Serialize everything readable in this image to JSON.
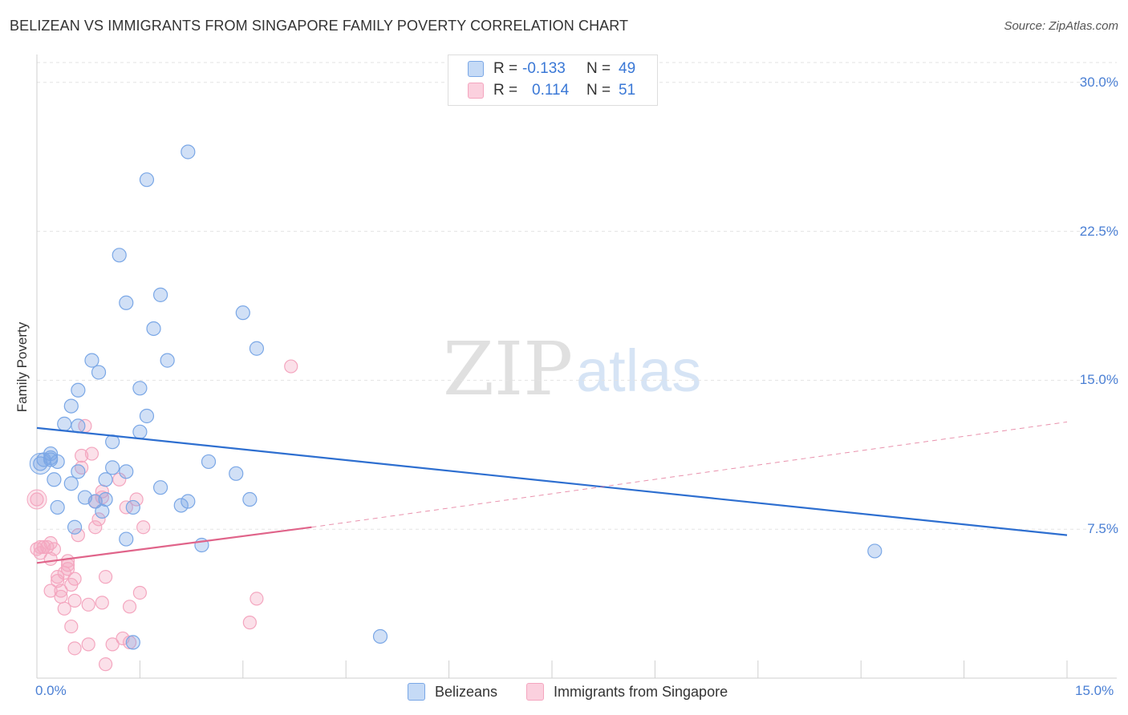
{
  "title": "BELIZEAN VS IMMIGRANTS FROM SINGAPORE FAMILY POVERTY CORRELATION CHART",
  "source": "Source: ZipAtlas.com",
  "watermark": {
    "zip": "ZIP",
    "atlas": "atlas"
  },
  "legend_top": {
    "rows": [
      {
        "r_label": "R =",
        "r_value": "-0.133",
        "n_label": "N =",
        "n_value": "49",
        "color": "#a8c8f0"
      },
      {
        "r_label": "R =",
        "r_value": "0.114",
        "n_label": "N =",
        "n_value": "51",
        "color": "#f6b8cb"
      }
    ]
  },
  "bottom_legend": {
    "series1": "Belizeans",
    "series2": "Immigrants from Singapore"
  },
  "chart_data": {
    "type": "scatter",
    "title": "BELIZEAN VS IMMIGRANTS FROM SINGAPORE FAMILY POVERTY CORRELATION CHART",
    "xlabel": "",
    "ylabel": "Family Poverty",
    "xlim": [
      0,
      15
    ],
    "ylim": [
      0,
      31
    ],
    "x_tick_labels": [
      "0.0%",
      "15.0%"
    ],
    "y_ticks": [
      7.5,
      15.0,
      22.5,
      30.0
    ],
    "y_tick_labels": [
      "7.5%",
      "15.0%",
      "22.5%",
      "30.0%"
    ],
    "grid": "horizontal dashed",
    "series": [
      {
        "name": "Belizeans",
        "color": "#7aa7e6",
        "line_color": "#2e6fd0",
        "r": -0.133,
        "n": 49,
        "trend": {
          "x": [
            0,
            15
          ],
          "y": [
            12.6,
            7.2
          ]
        },
        "points": [
          [
            2.2,
            26.5
          ],
          [
            1.6,
            25.1
          ],
          [
            1.2,
            21.3
          ],
          [
            1.8,
            19.3
          ],
          [
            1.3,
            18.9
          ],
          [
            3.0,
            18.4
          ],
          [
            1.7,
            17.6
          ],
          [
            3.2,
            16.6
          ],
          [
            0.8,
            16.0
          ],
          [
            1.9,
            16.0
          ],
          [
            0.9,
            15.4
          ],
          [
            1.5,
            14.6
          ],
          [
            0.6,
            14.5
          ],
          [
            0.5,
            13.7
          ],
          [
            1.6,
            13.2
          ],
          [
            0.4,
            12.8
          ],
          [
            0.6,
            12.7
          ],
          [
            1.5,
            12.4
          ],
          [
            1.1,
            11.9
          ],
          [
            0.1,
            11.0
          ],
          [
            0.2,
            11.3
          ],
          [
            0.2,
            11.0
          ],
          [
            0.3,
            10.9
          ],
          [
            0.05,
            10.8
          ],
          [
            2.5,
            10.9
          ],
          [
            0.6,
            10.4
          ],
          [
            1.3,
            10.4
          ],
          [
            2.9,
            10.3
          ],
          [
            1.0,
            10.0
          ],
          [
            0.25,
            10.0
          ],
          [
            0.5,
            9.8
          ],
          [
            1.8,
            9.6
          ],
          [
            1.1,
            10.6
          ],
          [
            0.7,
            9.1
          ],
          [
            1.0,
            9.0
          ],
          [
            0.85,
            8.9
          ],
          [
            3.1,
            9.0
          ],
          [
            2.2,
            8.9
          ],
          [
            0.3,
            8.6
          ],
          [
            1.4,
            8.6
          ],
          [
            2.1,
            8.7
          ],
          [
            0.55,
            7.6
          ],
          [
            0.95,
            8.4
          ],
          [
            1.3,
            7.0
          ],
          [
            2.4,
            6.7
          ],
          [
            12.2,
            6.4
          ],
          [
            5.0,
            2.1
          ],
          [
            1.4,
            1.8
          ],
          [
            0.2,
            11.1
          ]
        ]
      },
      {
        "name": "Immigrants from Singapore",
        "color": "#f4a6bf",
        "line_color": "#e0648a",
        "r": 0.114,
        "n": 51,
        "trend": {
          "x": [
            0,
            4.0
          ],
          "y": [
            5.8,
            7.6
          ]
        },
        "trend_dashed": {
          "x": [
            4.0,
            15
          ],
          "y": [
            7.6,
            12.9
          ]
        },
        "points": [
          [
            3.7,
            15.7
          ],
          [
            0.7,
            12.7
          ],
          [
            0.8,
            11.3
          ],
          [
            0.65,
            11.2
          ],
          [
            0.65,
            10.6
          ],
          [
            1.2,
            10.0
          ],
          [
            0.95,
            9.1
          ],
          [
            0.95,
            9.4
          ],
          [
            1.45,
            9.0
          ],
          [
            0.0,
            9.0
          ],
          [
            0.85,
            8.9
          ],
          [
            1.3,
            8.6
          ],
          [
            0.9,
            8.0
          ],
          [
            0.85,
            7.6
          ],
          [
            1.55,
            7.6
          ],
          [
            0.6,
            7.2
          ],
          [
            0.2,
            6.8
          ],
          [
            0.1,
            6.6
          ],
          [
            0.15,
            6.6
          ],
          [
            0.0,
            6.5
          ],
          [
            0.25,
            6.5
          ],
          [
            0.05,
            6.3
          ],
          [
            0.2,
            6.0
          ],
          [
            0.45,
            5.9
          ],
          [
            0.45,
            5.7
          ],
          [
            0.4,
            5.3
          ],
          [
            0.3,
            5.1
          ],
          [
            0.3,
            4.9
          ],
          [
            0.55,
            5.0
          ],
          [
            0.5,
            4.7
          ],
          [
            1.0,
            5.1
          ],
          [
            0.35,
            4.4
          ],
          [
            0.2,
            4.4
          ],
          [
            1.5,
            4.3
          ],
          [
            0.35,
            4.1
          ],
          [
            0.55,
            3.9
          ],
          [
            0.95,
            3.8
          ],
          [
            0.75,
            3.7
          ],
          [
            3.2,
            4.0
          ],
          [
            1.35,
            3.6
          ],
          [
            0.4,
            3.5
          ],
          [
            0.5,
            2.6
          ],
          [
            3.1,
            2.8
          ],
          [
            1.1,
            1.7
          ],
          [
            1.35,
            1.8
          ],
          [
            0.75,
            1.7
          ],
          [
            0.55,
            1.5
          ],
          [
            1.0,
            0.7
          ],
          [
            1.25,
            2.0
          ],
          [
            0.05,
            6.6
          ],
          [
            0.45,
            5.5
          ]
        ]
      }
    ]
  }
}
